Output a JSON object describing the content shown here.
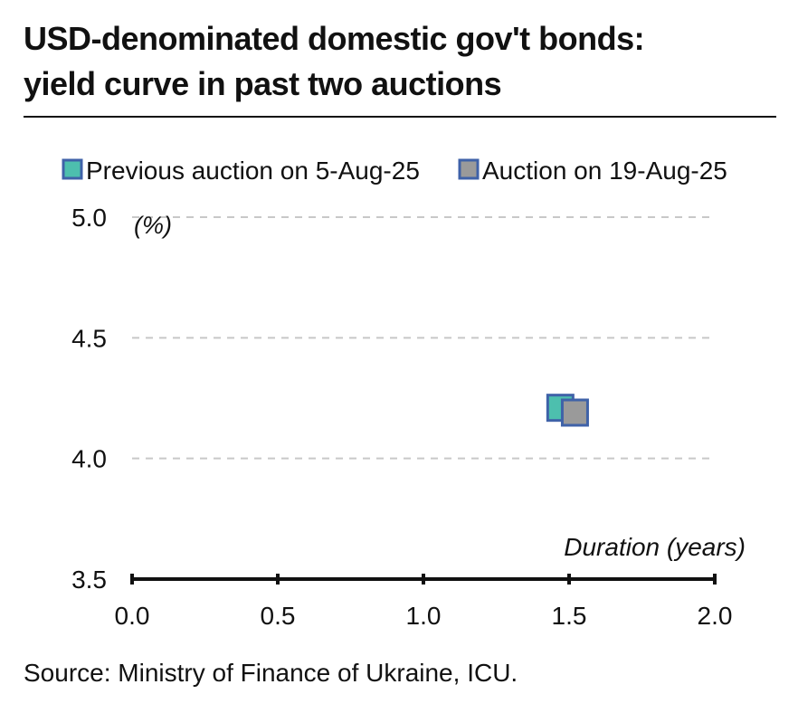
{
  "title": {
    "line1": "USD-denominated domestic gov't bonds:",
    "line2": "yield curve in past two auctions"
  },
  "source": "Source: Ministry of Finance of Ukraine, ICU.",
  "colors": {
    "series_prev": "#4dbfae",
    "series_curr": "#9a9a9a",
    "marker_border": "#3f62a8",
    "gridline": "#c8c8c8",
    "axis": "#111111"
  },
  "chart_data": {
    "type": "scatter",
    "xlabel": "Duration (years)",
    "ylabel": "(%)",
    "xlim": [
      0.0,
      2.0
    ],
    "ylim": [
      3.5,
      5.0
    ],
    "x_ticks": [
      "0.0",
      "0.5",
      "1.0",
      "1.5",
      "2.0"
    ],
    "y_ticks": [
      "5.0",
      "4.5",
      "4.0",
      "3.5"
    ],
    "grid": "horizontal dashed",
    "legend_position": "top",
    "series": [
      {
        "name": "Previous auction on 5-Aug-25",
        "color": "#4dbfae",
        "points": [
          {
            "x": 1.47,
            "y": 4.21
          }
        ]
      },
      {
        "name": "Auction on 19-Aug-25",
        "color": "#9a9a9a",
        "points": [
          {
            "x": 1.52,
            "y": 4.19
          }
        ]
      }
    ]
  }
}
